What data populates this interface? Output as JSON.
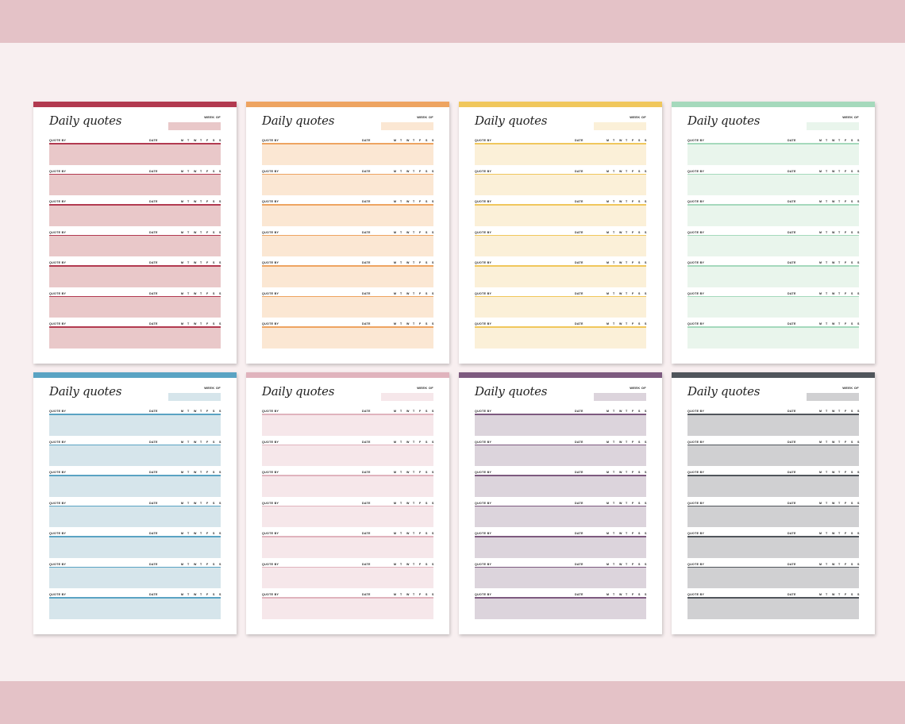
{
  "labels": {
    "title": "Daily quotes",
    "week_of": "WEEK OF",
    "quote_by": "QUOTE BY",
    "date": "DATE",
    "days": [
      "M",
      "T",
      "W",
      "T",
      "F",
      "S",
      "S"
    ]
  },
  "entries_per_page": 7,
  "pages": [
    {
      "name": "red",
      "accent": "#b23a50",
      "fill": "#e9c8c9"
    },
    {
      "name": "orange",
      "accent": "#eea461",
      "fill": "#fbe7d3"
    },
    {
      "name": "yellow",
      "accent": "#f0c75c",
      "fill": "#fbf0d8"
    },
    {
      "name": "green",
      "accent": "#a5d9bc",
      "fill": "#e9f5ec"
    },
    {
      "name": "blue",
      "accent": "#5aa3c3",
      "fill": "#d6e5eb"
    },
    {
      "name": "pink",
      "accent": "#e0b3bd",
      "fill": "#f6e7ea"
    },
    {
      "name": "purple",
      "accent": "#7d5a7f",
      "fill": "#dcd4dc"
    },
    {
      "name": "gray",
      "accent": "#50555b",
      "fill": "#d0d0d2"
    }
  ]
}
